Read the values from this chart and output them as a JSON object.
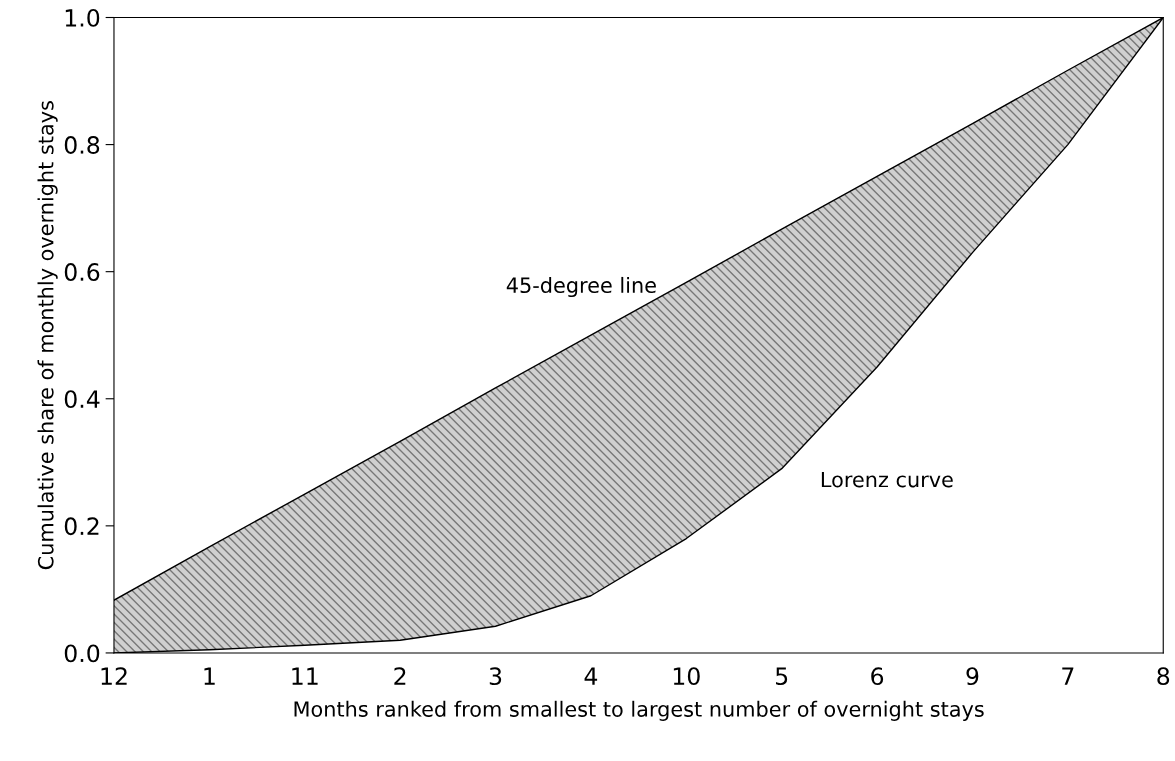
{
  "chart_data": {
    "type": "line",
    "xlabel": "Months ranked from smallest to largest number of overnight stays",
    "ylabel": "Cumulative share of monthly overnight stays",
    "categories": [
      "12",
      "1",
      "11",
      "2",
      "3",
      "4",
      "10",
      "5",
      "6",
      "9",
      "7",
      "8"
    ],
    "series": [
      {
        "name": "45-degree line",
        "color": "#000000",
        "values": [
          0.083,
          0.167,
          0.25,
          0.333,
          0.417,
          0.5,
          0.583,
          0.667,
          0.75,
          0.833,
          0.917,
          1.0
        ],
        "lower": [
          0.0,
          0.005,
          0.012,
          0.02,
          0.042,
          0.09,
          0.18,
          0.29,
          0.45,
          0.63,
          0.8,
          1.0
        ],
        "upper": [
          0.083,
          0.167,
          0.25,
          0.333,
          0.417,
          0.5,
          0.583,
          0.667,
          0.75,
          0.833,
          0.917,
          1.0
        ]
      },
      {
        "name": "Lorenz curve",
        "color": "#000000",
        "values": [
          0.0,
          0.005,
          0.012,
          0.02,
          0.042,
          0.09,
          0.18,
          0.29,
          0.45,
          0.63,
          0.8,
          1.0
        ]
      }
    ],
    "ylim": [
      0,
      1
    ],
    "yticks": [
      {
        "value": 0,
        "label": "0.0"
      },
      {
        "value": 0.2,
        "label": "0.2"
      },
      {
        "value": 0.4,
        "label": "0.4"
      },
      {
        "value": 0.6,
        "label": "0.6"
      },
      {
        "value": 0.8,
        "label": "0.8"
      },
      {
        "value": 1,
        "label": "1.0"
      }
    ],
    "grid": false,
    "legend": false,
    "marker": "none",
    "line_style": "solid"
  }
}
